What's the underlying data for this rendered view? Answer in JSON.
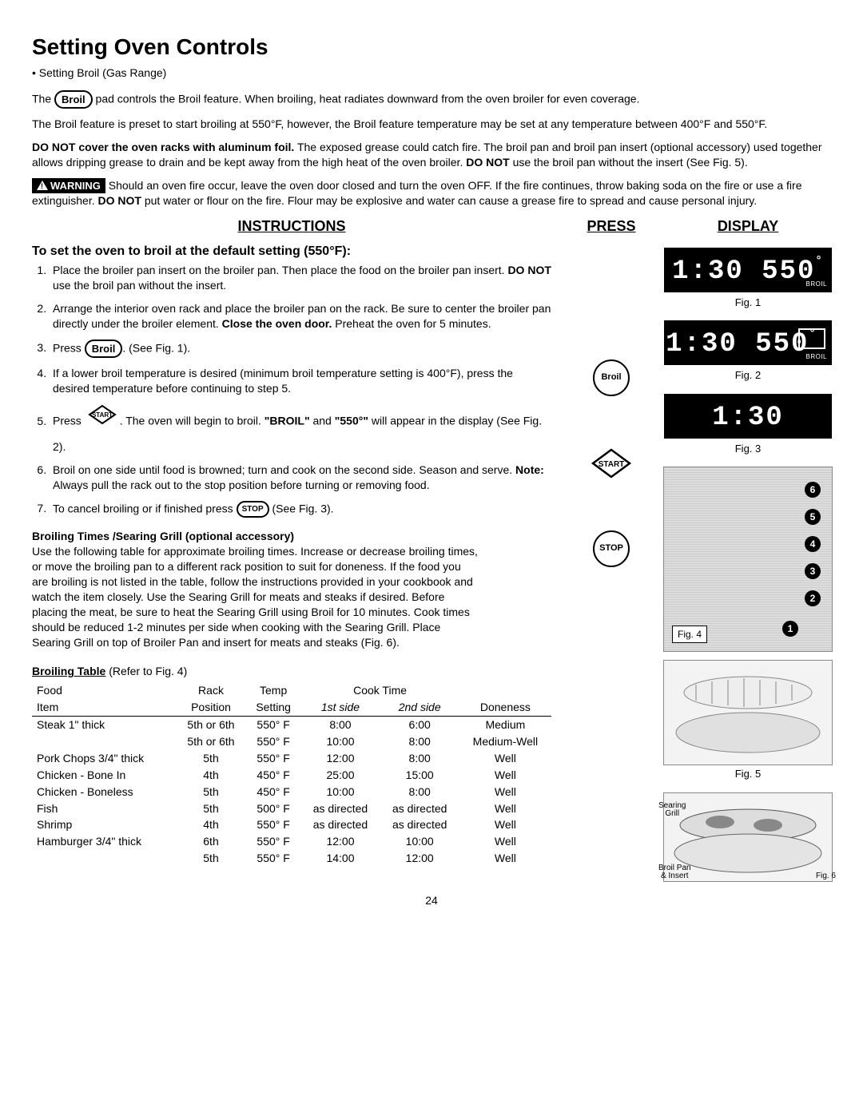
{
  "title": "Setting Oven Controls",
  "subtitle": "Setting Broil (Gas Range)",
  "pad_broil": "Broil",
  "intro1a": "The ",
  "intro1b": " pad controls the Broil feature. When broiling, heat radiates downward from the oven broiler for even coverage.",
  "intro2": "The Broil feature is preset to start broiling at 550°F, however, the Broil feature temperature may be set at any temperature between 400°F and 550°F.",
  "caution_lead": "DO NOT cover the oven racks with aluminum foil.",
  "caution_rest": " The exposed grease could catch fire. The broil pan and broil pan insert (optional accessory) used together allows dripping grease to drain and be kept away from the high heat of the oven broiler. ",
  "caution_bold2": "DO NOT",
  "caution_rest2": " use the broil pan without the insert (See Fig. 5).",
  "warning_label": "WARNING",
  "warning_text1": " Should an oven fire occur, leave the oven door closed and turn the oven OFF. If the fire continues, throw baking soda on the fire or use a fire extinguisher. ",
  "warning_bold": "DO NOT",
  "warning_text2": " put water or flour on the fire. Flour may be explosive and water can cause a grease fire to spread and cause personal injury.",
  "columns": {
    "instructions": "INSTRUCTIONS",
    "press": "PRESS",
    "display": "DISPLAY"
  },
  "section1_title": "To set the oven to broil at the default setting (550°F):",
  "steps": [
    {
      "a": "Place the broiler pan insert on the broiler pan. Then place the food on the broiler pan insert. ",
      "b": "DO NOT",
      "c": " use the broil pan without the insert."
    },
    {
      "a": "Arrange the interior oven rack and place the broiler pan on the rack.  Be sure to center the broiler pan directly under the broiler element. ",
      "b": "Close the oven door.",
      "c": " Preheat the oven for 5 minutes."
    },
    {
      "a": "Press ",
      "pad": "Broil",
      "c": ". (See Fig. 1)."
    },
    {
      "a": "If a lower broil temperature is desired (minimum broil temperature setting is 400°F), press the desired temperature before continuing to step 5."
    },
    {
      "a": "Press ",
      "diamond": "START",
      "c": ". The oven will begin to broil. ",
      "b2": "\"BROIL\"",
      "c2": " and ",
      "b3": "\"550°\"",
      "c3": " will appear in the display (See Fig. 2)."
    },
    {
      "a": "Broil on one side until food is browned; turn and cook on the second side. Season and serve. ",
      "b": "Note:",
      "c": " Always pull the rack out to the stop position before turning or removing food."
    },
    {
      "a": "To cancel broiling or if finished press ",
      "circle": "STOP",
      "c": " (See Fig. 3)."
    }
  ],
  "searing_title": "Broiling Times /Searing Grill (optional accessory)",
  "searing_body": "Use the following table for approximate broiling times. Increase or decrease broiling times, or move the broiling pan to a different rack position to suit for doneness. If the food you are broiling is not listed in the table, follow the instructions provided in your cookbook and watch the item closely. Use the Searing Grill for meats and steaks if desired. Before placing the meat, be sure to heat the Searing Grill using Broil for 10 minutes. Cook times should be reduced 1-2 minutes per side when cooking with the Searing Grill. Place Searing Grill on top of Broiler Pan and insert for meats and steaks (Fig. 6).",
  "table_title": "Broiling Table",
  "table_title_note": " (Refer to Fig. 4)",
  "table_headers": {
    "food": "Food",
    "item": "Item",
    "rack": "Rack",
    "position": "Position",
    "temp": "Temp",
    "setting": "Setting",
    "cook": "Cook Time",
    "side1": "1st side",
    "side2": "2nd side",
    "done": "Doneness"
  },
  "rows": [
    {
      "food": "Steak 1\" thick",
      "rack": "5th or 6th",
      "temp": "550° F",
      "s1": "8:00",
      "s2": "6:00",
      "done": "Medium"
    },
    {
      "food": "",
      "rack": "5th or 6th",
      "temp": "550° F",
      "s1": "10:00",
      "s2": "8:00",
      "done": "Medium-Well"
    },
    {
      "food": "Pork Chops 3/4\" thick",
      "rack": "5th",
      "temp": "550° F",
      "s1": "12:00",
      "s2": "8:00",
      "done": "Well"
    },
    {
      "food": "Chicken - Bone In",
      "rack": "4th",
      "temp": "450° F",
      "s1": "25:00",
      "s2": "15:00",
      "done": "Well"
    },
    {
      "food": "Chicken -  Boneless",
      "rack": "5th",
      "temp": "450° F",
      "s1": "10:00",
      "s2": "8:00",
      "done": "Well"
    },
    {
      "food": "Fish",
      "rack": "5th",
      "temp": "500° F",
      "s1": "as  directed",
      "s2": "as  directed",
      "done": "Well"
    },
    {
      "food": "Shrimp",
      "rack": "4th",
      "temp": "550° F",
      "s1": "as  directed",
      "s2": "as  directed",
      "done": "Well"
    },
    {
      "food": "Hamburger 3/4\" thick",
      "rack": "6th",
      "temp": "550° F",
      "s1": "12:00",
      "s2": "10:00",
      "done": "Well"
    },
    {
      "food": "",
      "rack": "5th",
      "temp": "550° F",
      "s1": "14:00",
      "s2": "12:00",
      "done": "Well"
    }
  ],
  "press_buttons": {
    "broil": "Broil",
    "start": "START",
    "stop": "STOP"
  },
  "lcd": {
    "fig1": "1:30 550",
    "fig1_small": "BROIL",
    "fig1_cap": "Fig. 1",
    "fig2": "1:30 550",
    "fig2_small": "BROIL",
    "fig2_cap": "Fig. 2",
    "fig3": "1:30",
    "fig3_cap": "Fig. 3"
  },
  "fig4": "Fig. 4",
  "fig5": "Fig. 5",
  "fig6": "Fig. 6",
  "labels": {
    "searing": "Searing\nGrill",
    "broilpan": "Broil Pan\n& Insert"
  },
  "page": "24"
}
